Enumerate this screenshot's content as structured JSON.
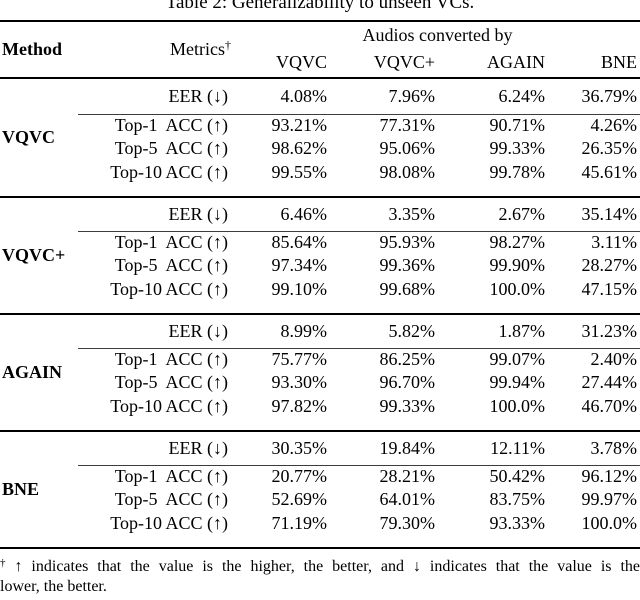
{
  "title": "Table 2: Generalizability to unseen VCs.",
  "table": {
    "headers": {
      "method": "Method",
      "metrics": "Metrics",
      "metrics_sup": "†",
      "group": "Audios converted by",
      "systems": [
        "VQVC",
        "VQVC+",
        "AGAIN",
        "BNE"
      ]
    },
    "blocks": [
      {
        "method": "VQVC",
        "rows": [
          {
            "metric": "EER (↓)",
            "values": [
              "4.08%",
              "7.96%",
              "6.24%",
              "36.79%"
            ]
          },
          {
            "metric": "Top-1  ACC (↑)",
            "values": [
              "93.21%",
              "77.31%",
              "90.71%",
              "4.26%"
            ]
          },
          {
            "metric": "Top-5  ACC (↑)",
            "values": [
              "98.62%",
              "95.06%",
              "99.33%",
              "26.35%"
            ]
          },
          {
            "metric": "Top-10 ACC (↑)",
            "values": [
              "99.55%",
              "98.08%",
              "99.78%",
              "45.61%"
            ]
          }
        ]
      },
      {
        "method": "VQVC+",
        "rows": [
          {
            "metric": "EER (↓)",
            "values": [
              "6.46%",
              "3.35%",
              "2.67%",
              "35.14%"
            ]
          },
          {
            "metric": "Top-1  ACC (↑)",
            "values": [
              "85.64%",
              "95.93%",
              "98.27%",
              "3.11%"
            ]
          },
          {
            "metric": "Top-5  ACC (↑)",
            "values": [
              "97.34%",
              "99.36%",
              "99.90%",
              "28.27%"
            ]
          },
          {
            "metric": "Top-10 ACC (↑)",
            "values": [
              "99.10%",
              "99.68%",
              "100.0%",
              "47.15%"
            ]
          }
        ]
      },
      {
        "method": "AGAIN",
        "rows": [
          {
            "metric": "EER (↓)",
            "values": [
              "8.99%",
              "5.82%",
              "1.87%",
              "31.23%"
            ]
          },
          {
            "metric": "Top-1  ACC (↑)",
            "values": [
              "75.77%",
              "86.25%",
              "99.07%",
              "2.40%"
            ]
          },
          {
            "metric": "Top-5  ACC (↑)",
            "values": [
              "93.30%",
              "96.70%",
              "99.94%",
              "27.44%"
            ]
          },
          {
            "metric": "Top-10 ACC (↑)",
            "values": [
              "97.82%",
              "99.33%",
              "100.0%",
              "46.70%"
            ]
          }
        ]
      },
      {
        "method": "BNE",
        "rows": [
          {
            "metric": "EER (↓)",
            "values": [
              "30.35%",
              "19.84%",
              "12.11%",
              "3.78%"
            ]
          },
          {
            "metric": "Top-1  ACC (↑)",
            "values": [
              "20.77%",
              "28.21%",
              "50.42%",
              "96.12%"
            ]
          },
          {
            "metric": "Top-5  ACC (↑)",
            "values": [
              "52.69%",
              "64.01%",
              "83.75%",
              "99.97%"
            ]
          },
          {
            "metric": "Top-10 ACC (↑)",
            "values": [
              "71.19%",
              "79.30%",
              "93.33%",
              "100.0%"
            ]
          }
        ]
      }
    ]
  },
  "footnote": {
    "sup": "†",
    "line1": "↑ indicates that the value is the higher, the better, and ↓ indicates that the value is the",
    "line2": "lower, the better."
  }
}
